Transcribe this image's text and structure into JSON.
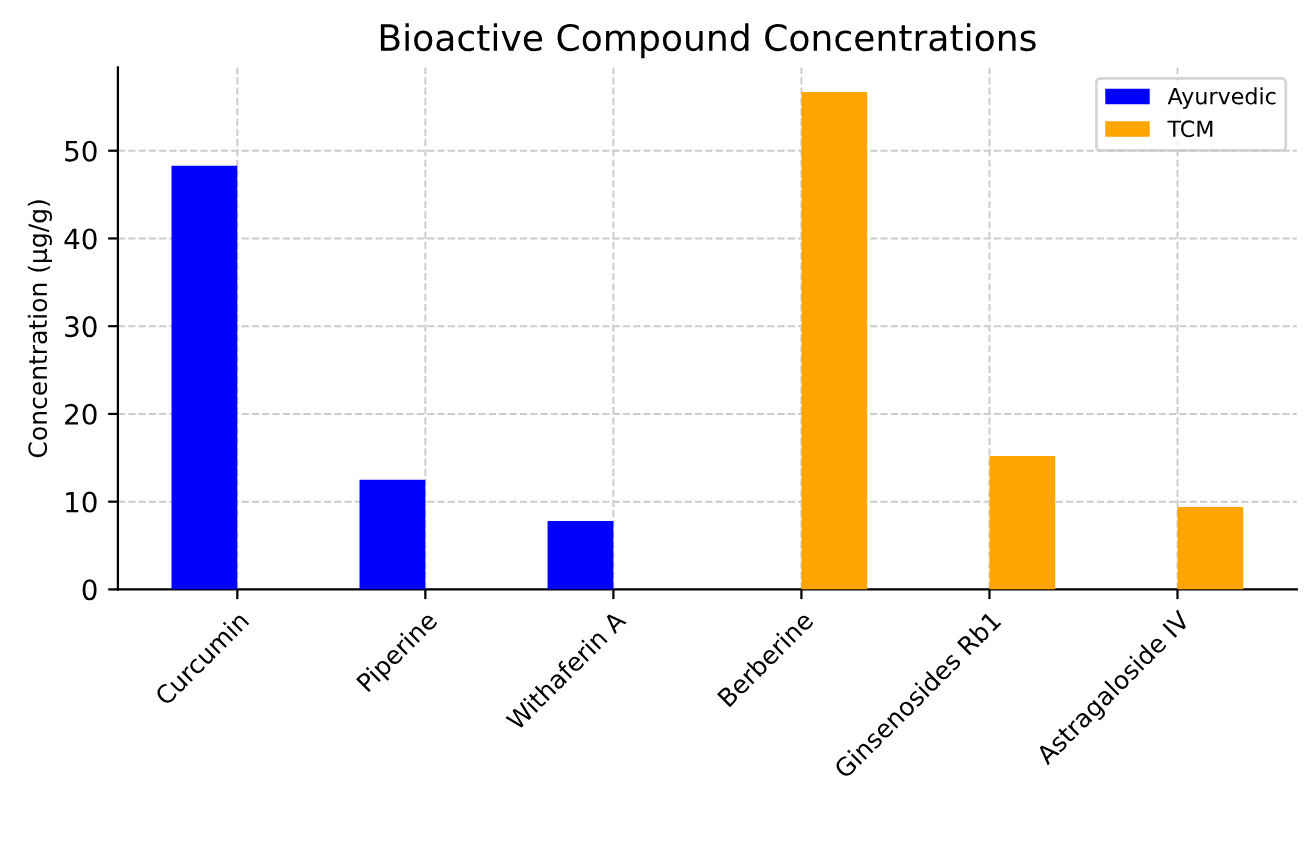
{
  "chart_data": {
    "type": "bar",
    "title": "Bioactive Compound Concentrations",
    "ylabel": "Concentration (µg/g)",
    "categories": [
      "Curcumin",
      "Piperine",
      "Withaferin A",
      "Berberine",
      "Ginsenosides Rb1",
      "Astragaloside IV"
    ],
    "series": [
      {
        "name": "Ayurvedic",
        "color": "#0000ff",
        "values": [
          48.3,
          12.5,
          7.8,
          null,
          null,
          null
        ]
      },
      {
        "name": "TCM",
        "color": "#ffa500",
        "values": [
          null,
          null,
          null,
          56.7,
          15.2,
          9.4
        ]
      }
    ],
    "ylim": [
      0,
      59.5
    ],
    "yticks": [
      0,
      10,
      20,
      30,
      40,
      50
    ],
    "grid": true,
    "legend": "top right"
  }
}
